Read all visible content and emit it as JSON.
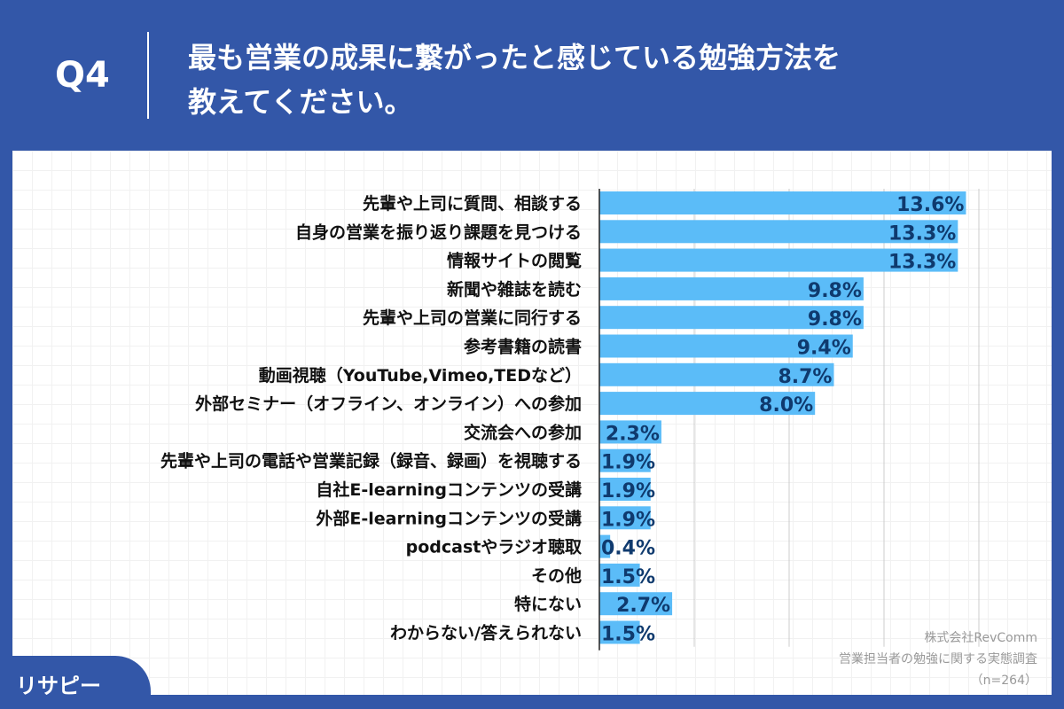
{
  "header": {
    "q": "Q4",
    "title_line1": "最も営業の成果に繋がったと感じている勉強方法を",
    "title_line2": "教えてください。"
  },
  "source": {
    "company": "株式会社RevComm",
    "survey": "営業担当者の勉強に関する実態調査",
    "n": "（n=264）"
  },
  "logo": "リサピー",
  "colors": {
    "bar": "#5bbcf8",
    "header": "#3357a8",
    "value_text": "#0f3a6e"
  },
  "chart_data": {
    "type": "bar",
    "orientation": "horizontal",
    "categories": [
      "先輩や上司に質問、相談する",
      "自身の営業を振り返り課題を見つける",
      "情報サイトの閲覧",
      "新聞や雑誌を読む",
      "先輩や上司の営業に同行する",
      "参考書籍の読書",
      "動画視聴（YouTube,Vimeo,TEDなど）",
      "外部セミナー（オフライン、オンライン）への参加",
      "交流会への参加",
      "先輩や上司の電話や営業記録（録音、録画）を視聴する",
      "自社E-learningコンテンツの受講",
      "外部E-learningコンテンツの受講",
      "podcastやラジオ聴取",
      "その他",
      "特にない",
      "わからない/答えられない"
    ],
    "values": [
      13.6,
      13.3,
      13.3,
      9.8,
      9.8,
      9.4,
      8.7,
      8.0,
      2.3,
      1.9,
      1.9,
      1.9,
      0.4,
      1.5,
      2.7,
      1.5
    ],
    "value_labels": [
      "13.6%",
      "13.3%",
      "13.3%",
      "9.8%",
      "9.8%",
      "9.4%",
      "8.7%",
      "8.0%",
      "2.3%",
      "1.9%",
      "1.9%",
      "1.9%",
      "0.4%",
      "1.5%",
      "2.7%",
      "1.5%"
    ],
    "unit": "%",
    "grid": true
  }
}
